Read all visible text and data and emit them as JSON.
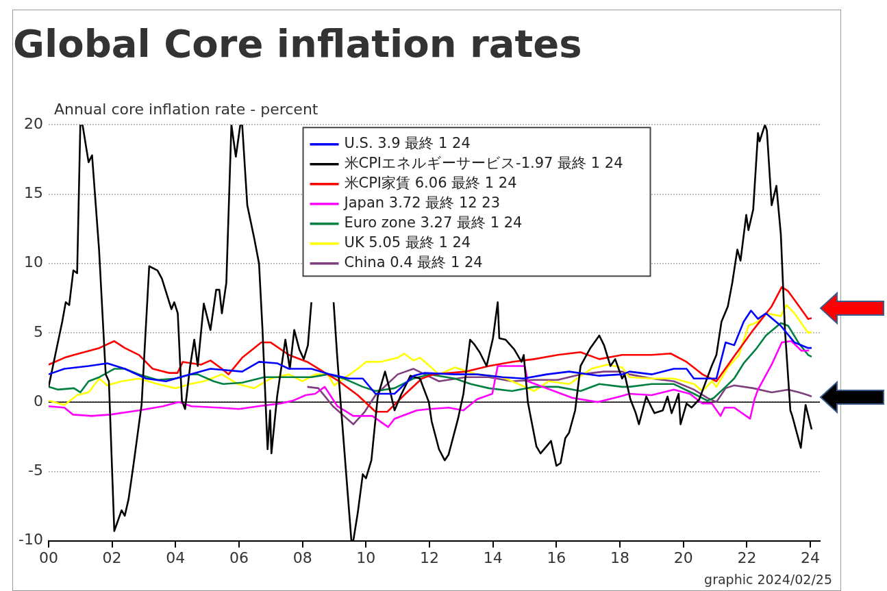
{
  "chart_data": {
    "type": "line",
    "title": "Global Core inflation rates",
    "ylabel": "Annual core inflation rate - percent",
    "annotations": [
      "graphic 2024/02/25"
    ],
    "xlim": [
      2000,
      2024.3
    ],
    "xticks": [
      {
        "value": 2000,
        "label": "00"
      },
      {
        "value": 2002,
        "label": "02"
      },
      {
        "value": 2004,
        "label": "04"
      },
      {
        "value": 2006,
        "label": "06"
      },
      {
        "value": 2008,
        "label": "08"
      },
      {
        "value": 2010,
        "label": "10"
      },
      {
        "value": 2012,
        "label": "12"
      },
      {
        "value": 2014,
        "label": "14"
      },
      {
        "value": 2016,
        "label": "16"
      },
      {
        "value": 2018,
        "label": "18"
      },
      {
        "value": 2020,
        "label": "20"
      },
      {
        "value": 2022,
        "label": "22"
      },
      {
        "value": 2024,
        "label": "24"
      }
    ],
    "ylim": [
      -10,
      20
    ],
    "yticks": [
      -10,
      -5,
      0,
      5,
      10,
      15,
      20
    ],
    "grid": "y",
    "legend": "top",
    "ref_lines": [
      {
        "axis": "y",
        "value": 0,
        "color": "#000000"
      }
    ],
    "series": [
      {
        "name": "U.S. 3.9 最終 1 24",
        "color": "#0000ff",
        "x": [
          2000.0,
          2000.5,
          2001.26,
          2001.85,
          2002.4,
          2003.07,
          2003.7,
          2004.3,
          2005.1,
          2006.1,
          2006.63,
          2007.2,
          2007.57,
          2008.28,
          2008.87,
          2009.46,
          2009.9,
          2010.3,
          2010.9,
          2011.5,
          2011.85,
          2012.8,
          2013.5,
          2014.3,
          2014.96,
          2015.7,
          2016.4,
          2017.35,
          2018.07,
          2018.3,
          2019.0,
          2019.7,
          2020.1,
          2020.33,
          2020.76,
          2021.04,
          2021.33,
          2021.6,
          2021.9,
          2022.13,
          2022.35,
          2022.6,
          2023.07,
          2023.5,
          2023.93,
          2024.04
        ],
        "values": [
          2.0,
          2.4,
          2.6,
          2.8,
          2.4,
          1.7,
          1.5,
          1.9,
          2.4,
          2.2,
          2.9,
          2.8,
          2.4,
          2.4,
          2.0,
          1.7,
          1.7,
          0.6,
          0.6,
          1.9,
          2.1,
          2.0,
          2.0,
          1.8,
          1.7,
          2.0,
          2.2,
          1.9,
          2.0,
          2.2,
          2.0,
          2.4,
          2.4,
          1.7,
          1.7,
          1.7,
          4.3,
          4.1,
          5.8,
          6.6,
          6.0,
          6.4,
          5.5,
          4.3,
          3.9,
          3.9
        ]
      },
      {
        "name": "米CPIエネルギーサービス-1.97 最終 1 24",
        "color": "#000000",
        "x": [
          2000.0,
          2000.43,
          2000.54,
          2000.65,
          2000.78,
          2000.9,
          2001.0,
          2001.07,
          2001.26,
          2001.37,
          2001.59,
          2001.8,
          2001.9,
          2002.07,
          2002.3,
          2002.4,
          2002.52,
          2002.67,
          2002.93,
          2003.17,
          2003.43,
          2003.57,
          2003.87,
          2003.96,
          2004.07,
          2004.2,
          2004.3,
          2004.46,
          2004.59,
          2004.7,
          2004.89,
          2005.1,
          2005.28,
          2005.38,
          2005.46,
          2005.6,
          2005.76,
          2005.9,
          2006.04,
          2006.1,
          2006.26,
          2006.48,
          2006.63,
          2006.74,
          2006.9,
          2006.98,
          2007.02,
          2007.2,
          2007.46,
          2007.6,
          2007.74,
          2007.9,
          2008.04,
          2008.17,
          2008.28,
          2008.6,
          2008.98,
          2009.09,
          2009.2,
          2009.54,
          2009.6,
          2009.74,
          2009.9,
          2010.0,
          2010.17,
          2010.37,
          2010.6,
          2010.76,
          2010.9,
          2011.1,
          2011.4,
          2011.7,
          2011.98,
          2012.07,
          2012.3,
          2012.48,
          2012.6,
          2012.9,
          2013.07,
          2013.28,
          2013.4,
          2013.58,
          2013.8,
          2014.0,
          2014.15,
          2014.2,
          2014.4,
          2014.67,
          2014.9,
          2014.97,
          2015.1,
          2015.2,
          2015.37,
          2015.5,
          2015.83,
          2016.0,
          2016.13,
          2016.28,
          2016.4,
          2016.59,
          2016.76,
          2017.07,
          2017.35,
          2017.5,
          2017.7,
          2017.85,
          2018.07,
          2018.15,
          2018.33,
          2018.5,
          2018.6,
          2018.83,
          2019.0,
          2019.09,
          2019.35,
          2019.5,
          2019.63,
          2019.85,
          2019.91,
          2020.1,
          2020.26,
          2020.5,
          2020.89,
          2021.04,
          2021.2,
          2021.4,
          2021.54,
          2021.7,
          2021.8,
          2021.98,
          2022.05,
          2022.2,
          2022.35,
          2022.4,
          2022.57,
          2022.63,
          2022.78,
          2022.93,
          2023.07,
          2023.2,
          2023.37,
          2023.43,
          2023.7,
          2023.85,
          2024.04
        ],
        "values": [
          1.1,
          5.8,
          7.2,
          7.0,
          9.5,
          9.3,
          20,
          20,
          17.3,
          17.8,
          11.0,
          2.0,
          1.5,
          -9.3,
          -7.8,
          -8.2,
          -7.0,
          -4.6,
          -0.2,
          9.8,
          9.5,
          8.9,
          6.7,
          7.2,
          6.4,
          0.1,
          -0.5,
          2.6,
          4.5,
          2.6,
          7.1,
          5.2,
          8.1,
          8.1,
          6.4,
          8.6,
          20,
          17.7,
          20,
          20,
          14.2,
          11.8,
          10.0,
          5.2,
          -3.4,
          -0.6,
          -3.7,
          0.4,
          4.5,
          2.4,
          5.2,
          3.8,
          3.1,
          4.1,
          7.2,
          null,
          7.2,
          3.4,
          0.0,
          -10,
          -10,
          -8.0,
          -5.2,
          -5.5,
          -4.2,
          0.4,
          2.2,
          0.8,
          -0.6,
          0.5,
          1.9,
          1.7,
          0.0,
          -1.4,
          -3.4,
          -4.2,
          -3.8,
          -1.2,
          0.6,
          4.5,
          4.2,
          3.6,
          2.6,
          4.6,
          7.2,
          4.6,
          4.5,
          3.8,
          2.9,
          3.4,
          0.0,
          -1.2,
          -3.2,
          -3.7,
          -2.8,
          -4.6,
          -4.4,
          -2.6,
          -2.2,
          -0.6,
          2.6,
          3.9,
          4.8,
          4.1,
          2.6,
          3.1,
          1.7,
          2.0,
          0.2,
          -0.8,
          -1.6,
          0.4,
          -0.4,
          -0.8,
          -0.6,
          0.4,
          -0.8,
          0.6,
          -1.6,
          -0.1,
          -0.4,
          0.2,
          2.6,
          3.4,
          5.8,
          6.9,
          8.6,
          11.0,
          10.2,
          13.5,
          12.4,
          13.9,
          19.4,
          18.8,
          20,
          19.6,
          14.2,
          15.6,
          12.1,
          5.2,
          -0.6,
          -1.0,
          -3.3,
          -0.2,
          -1.97
        ]
      },
      {
        "name": "米CPI家賃 6.06 最終 1 24",
        "color": "#ff0000",
        "x": [
          2000.0,
          2000.5,
          2000.8,
          2001.6,
          2002.07,
          2002.4,
          2002.85,
          2003.28,
          2003.8,
          2004.06,
          2004.23,
          2004.8,
          2005.1,
          2005.46,
          2005.67,
          2006.1,
          2006.7,
          2007.0,
          2007.57,
          2008.15,
          2008.65,
          2009.15,
          2009.74,
          2010.3,
          2010.67,
          2011.2,
          2011.76,
          2012.13,
          2013.15,
          2013.87,
          2014.6,
          2015.3,
          2016.04,
          2016.76,
          2017.35,
          2018.07,
          2018.3,
          2019.0,
          2019.6,
          2020.1,
          2020.6,
          2021.04,
          2021.63,
          2022.2,
          2022.78,
          2023.1,
          2023.3,
          2023.65,
          2023.93,
          2024.04
        ],
        "values": [
          2.7,
          3.2,
          3.4,
          3.9,
          4.4,
          3.9,
          3.4,
          2.4,
          2.1,
          2.1,
          2.9,
          2.7,
          3.0,
          2.4,
          2.0,
          3.2,
          4.3,
          4.3,
          3.4,
          2.9,
          2.2,
          1.5,
          0.5,
          -0.7,
          -0.7,
          0.5,
          1.7,
          2.0,
          2.2,
          2.6,
          2.9,
          3.1,
          3.4,
          3.6,
          3.1,
          3.4,
          3.4,
          3.4,
          3.5,
          2.9,
          2.0,
          1.5,
          3.4,
          5.2,
          6.9,
          8.3,
          8.0,
          6.9,
          6.0,
          6.06
        ]
      },
      {
        "name": "Japan 3.72 最終 12 23",
        "color": "#ff00ff",
        "x": [
          2000.0,
          2000.5,
          2000.76,
          2001.35,
          2001.95,
          2002.85,
          2003.6,
          2004.1,
          2004.5,
          2005.35,
          2006.0,
          2006.6,
          2007.3,
          2007.7,
          2008.1,
          2008.4,
          2008.7,
          2009.1,
          2009.6,
          2010.2,
          2010.7,
          2010.9,
          2011.6,
          2012.0,
          2012.6,
          2013.07,
          2013.5,
          2013.98,
          2014.15,
          2015.0,
          2015.1,
          2016.5,
          2017.3,
          2018.0,
          2018.3,
          2019.0,
          2019.7,
          2020.2,
          2020.6,
          2020.9,
          2021.17,
          2021.3,
          2021.6,
          2022.1,
          2022.24,
          2022.35,
          2022.78,
          2023.1,
          2023.4,
          2023.72,
          2023.96
        ],
        "values": [
          -0.3,
          -0.4,
          -0.9,
          -1.0,
          -0.9,
          -0.6,
          -0.3,
          0.0,
          -0.3,
          -0.4,
          -0.5,
          -0.3,
          -0.1,
          0.1,
          0.5,
          0.6,
          1.1,
          -0.3,
          -1.0,
          -1.0,
          -1.8,
          -1.2,
          -0.6,
          -0.5,
          -0.4,
          -0.6,
          0.2,
          0.6,
          2.6,
          2.6,
          1.5,
          0.3,
          0.0,
          0.4,
          0.6,
          0.5,
          0.9,
          0.6,
          -0.1,
          -0.1,
          -1.0,
          -0.4,
          -0.4,
          -1.2,
          0.2,
          0.9,
          2.7,
          4.3,
          4.4,
          3.7,
          3.72
        ]
      },
      {
        "name": "Euro zone 3.27 最終 1 24",
        "color": "#008040",
        "x": [
          2000.0,
          2000.3,
          2000.8,
          2001.0,
          2001.26,
          2001.6,
          2002.07,
          2002.4,
          2002.85,
          2003.43,
          2004.0,
          2004.46,
          2004.7,
          2005.2,
          2005.5,
          2006.1,
          2006.8,
          2007.57,
          2008.28,
          2008.8,
          2009.3,
          2009.9,
          2010.3,
          2010.9,
          2011.5,
          2012.0,
          2012.8,
          2013.3,
          2013.87,
          2014.6,
          2015.3,
          2016.04,
          2016.76,
          2017.35,
          2018.07,
          2018.3,
          2019.0,
          2019.7,
          2020.33,
          2020.76,
          2020.96,
          2021.33,
          2021.6,
          2021.9,
          2022.28,
          2022.6,
          2023.07,
          2023.3,
          2023.65,
          2023.93,
          2024.04
        ],
        "values": [
          1.1,
          0.9,
          1.0,
          0.7,
          1.5,
          1.8,
          2.4,
          2.4,
          2.0,
          1.6,
          1.7,
          2.0,
          2.0,
          1.5,
          1.3,
          1.4,
          1.8,
          1.8,
          1.8,
          2.0,
          1.7,
          1.1,
          0.8,
          1.0,
          1.7,
          2.0,
          1.7,
          1.3,
          1.0,
          0.8,
          1.1,
          1.1,
          0.8,
          1.3,
          1.1,
          1.1,
          1.3,
          1.3,
          0.6,
          0.1,
          0.3,
          1.1,
          1.7,
          2.8,
          3.8,
          4.8,
          5.7,
          5.5,
          4.2,
          3.4,
          3.27
        ]
      },
      {
        "name": "UK 5.05 最終 1 24",
        "color": "#ffff00",
        "x": [
          2000.0,
          2000.5,
          2000.9,
          2001.26,
          2001.6,
          2001.85,
          2002.3,
          2002.85,
          2003.43,
          2004.0,
          2004.46,
          2004.9,
          2005.46,
          2005.96,
          2006.48,
          2007.0,
          2007.57,
          2008.0,
          2008.4,
          2008.8,
          2009.0,
          2009.3,
          2009.74,
          2010.0,
          2010.45,
          2011.0,
          2011.2,
          2011.5,
          2011.7,
          2012.3,
          2012.8,
          2013.5,
          2014.3,
          2014.8,
          2015.3,
          2015.75,
          2016.4,
          2017.1,
          2017.6,
          2018.07,
          2018.3,
          2019.0,
          2019.7,
          2020.33,
          2020.6,
          2020.9,
          2021.04,
          2021.4,
          2021.75,
          2022.05,
          2022.35,
          2022.6,
          2023.07,
          2023.25,
          2023.5,
          2023.93,
          2024.04
        ],
        "values": [
          0.1,
          -0.2,
          0.5,
          0.7,
          1.7,
          1.2,
          1.5,
          1.7,
          1.3,
          1.0,
          1.3,
          1.5,
          2.0,
          1.3,
          1.0,
          1.7,
          2.0,
          1.5,
          2.0,
          2.0,
          1.2,
          1.7,
          2.4,
          2.9,
          2.9,
          3.2,
          3.5,
          3.0,
          3.2,
          2.0,
          2.5,
          2.0,
          1.8,
          1.3,
          0.8,
          1.5,
          1.3,
          2.4,
          2.7,
          2.5,
          1.8,
          1.7,
          1.7,
          1.3,
          0.8,
          1.5,
          1.1,
          2.5,
          3.4,
          5.5,
          5.8,
          6.4,
          6.2,
          7.0,
          6.4,
          5.0,
          5.05
        ]
      },
      {
        "name": "China 0.4 最終 1 24",
        "color": "#7f3f7f",
        "x": [
          2008.15,
          2008.5,
          2008.96,
          2009.6,
          2009.96,
          2010.3,
          2011.0,
          2011.5,
          2011.85,
          2012.3,
          2013.15,
          2013.87,
          2014.6,
          2015.3,
          2016.04,
          2016.76,
          2017.5,
          2018.07,
          2018.3,
          2019.0,
          2019.7,
          2020.33,
          2020.76,
          2021.04,
          2021.33,
          2021.6,
          2022.2,
          2022.78,
          2023.3,
          2023.65,
          2023.93,
          2024.04
        ],
        "values": [
          1.1,
          1.0,
          -0.3,
          -1.6,
          -0.7,
          0.5,
          2.0,
          2.4,
          2.0,
          1.5,
          1.8,
          1.8,
          1.5,
          1.6,
          1.6,
          2.0,
          2.2,
          2.2,
          2.0,
          1.7,
          1.5,
          0.9,
          0.3,
          0.0,
          1.0,
          1.2,
          1.0,
          0.7,
          0.9,
          0.7,
          0.5,
          0.4
        ]
      }
    ]
  }
}
